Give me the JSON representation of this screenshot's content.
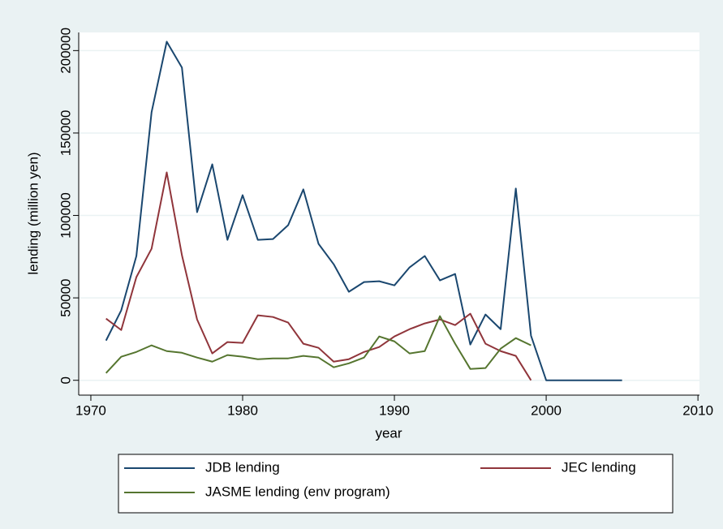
{
  "chart_data": {
    "type": "line",
    "x_label": "year",
    "y_label": "lending (million yen)",
    "x": [
      1971,
      1972,
      1973,
      1974,
      1975,
      1976,
      1977,
      1978,
      1979,
      1980,
      1981,
      1982,
      1983,
      1984,
      1985,
      1986,
      1987,
      1988,
      1989,
      1990,
      1991,
      1992,
      1993,
      1994,
      1995,
      1996,
      1997,
      1998,
      1999,
      2000,
      2001,
      2002,
      2003,
      2004,
      2005
    ],
    "series": [
      {
        "name": "JDB lending",
        "color": "#1a476f",
        "values": [
          24100,
          42400,
          75400,
          162600,
          205400,
          189700,
          102000,
          131000,
          85200,
          112300,
          85200,
          85700,
          94100,
          115800,
          82800,
          70400,
          53700,
          59600,
          60100,
          57600,
          68500,
          75400,
          60600,
          64500,
          21700,
          39900,
          31000,
          116300,
          27100,
          0,
          0,
          0,
          0,
          0,
          0
        ]
      },
      {
        "name": "JEC lending",
        "color": "#90353b",
        "values": [
          37400,
          30500,
          62600,
          79800,
          126100,
          75900,
          36900,
          16300,
          23200,
          22700,
          39400,
          38400,
          35000,
          22200,
          19700,
          11300,
          12800,
          17200,
          20200,
          26600,
          31000,
          34500,
          36900,
          33500,
          40400,
          22200,
          17700,
          14800,
          0,
          null,
          null,
          null,
          null,
          null,
          null
        ]
      },
      {
        "name": "JASME lending (env program)",
        "color": "#55752f",
        "values": [
          4400,
          14300,
          17200,
          21200,
          17700,
          16700,
          13800,
          11300,
          15300,
          14300,
          12800,
          13300,
          13300,
          14800,
          13800,
          7900,
          10300,
          13800,
          26600,
          23600,
          16300,
          17700,
          38900,
          22200,
          6900,
          7400,
          19200,
          25600,
          21200,
          null,
          null,
          null,
          null,
          null,
          null
        ]
      }
    ],
    "xlim": [
      1969.2,
      2010.1
    ],
    "xticks": [
      1970,
      1980,
      1990,
      2000,
      2010
    ],
    "ylim": [
      -9000,
      211000
    ],
    "yticks": [
      0,
      50000,
      100000,
      150000,
      200000
    ],
    "grid": true,
    "legend": "bottom"
  }
}
